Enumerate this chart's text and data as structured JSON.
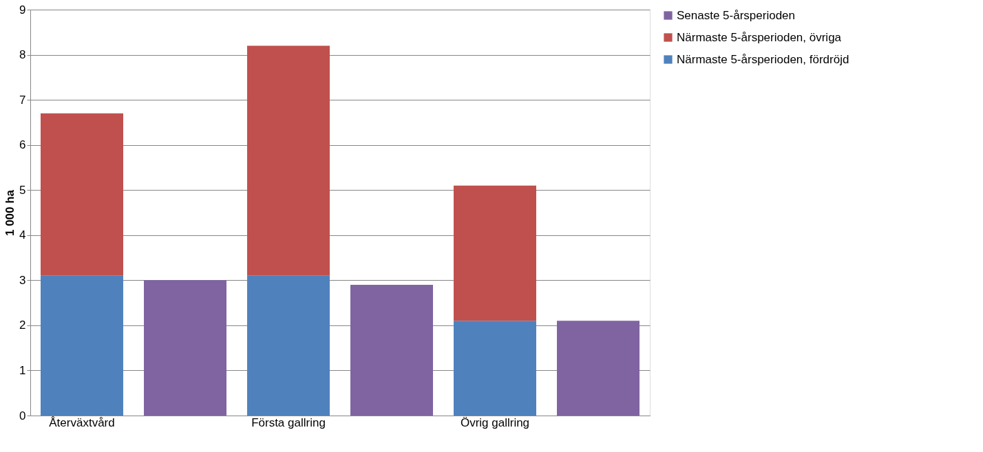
{
  "chart_data": {
    "type": "bar",
    "ylabel": "1 000 ha",
    "categories": [
      "Återväxtvård",
      null,
      "Första gallring",
      null,
      "Övrig gallring",
      null
    ],
    "series": [
      {
        "name": "Närmaste 5-årsperioden, fördröjd",
        "color": "#4f81bd",
        "values": [
          3.1,
          null,
          3.1,
          null,
          2.1,
          null
        ]
      },
      {
        "name": "Närmaste 5-årsperioden, övriga",
        "color": "#c0504d",
        "values": [
          3.6,
          null,
          5.1,
          null,
          3.0,
          null
        ]
      },
      {
        "name": "Senaste 5-årsperioden",
        "color": "#8064a2",
        "values": [
          null,
          3.0,
          null,
          2.9,
          null,
          2.1
        ]
      }
    ],
    "stacked": true,
    "ylim": [
      0,
      9
    ],
    "yticks": [
      0,
      1,
      2,
      3,
      4,
      5,
      6,
      7,
      8,
      9
    ],
    "grid": "y",
    "legend": "right"
  }
}
